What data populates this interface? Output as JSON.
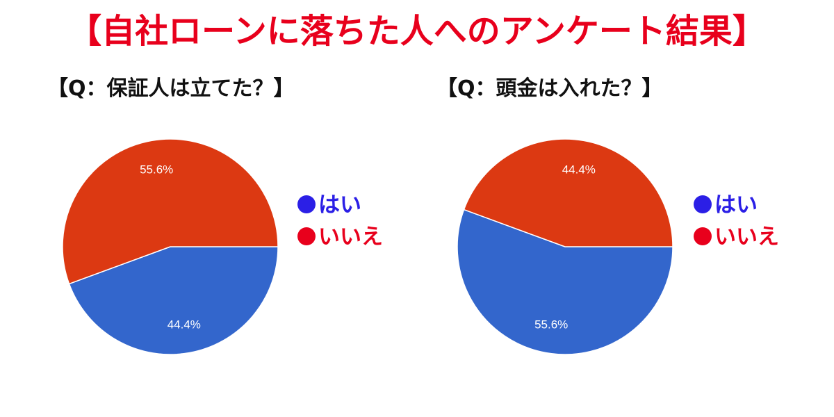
{
  "title": "【自社ローンに落ちた人へのアンケート結果】",
  "colors": {
    "title": "#e8001c",
    "yes": "#3366cc",
    "no": "#dc3912",
    "legend_yes": "#2b1fe6",
    "legend_no": "#e8001c"
  },
  "chart_data": [
    {
      "type": "pie",
      "title": "【Q：保証人は立てた？】",
      "legend": [
        {
          "label": "●はい",
          "marker": "●",
          "text": "はい"
        },
        {
          "label": "●いいえ",
          "marker": "●",
          "text": "いいえ"
        }
      ],
      "legend_placement": "right",
      "slices": [
        {
          "name": "はい",
          "value": 44.4,
          "label": "44.4%"
        },
        {
          "name": "いいえ",
          "value": 55.6,
          "label": "55.6%"
        }
      ]
    },
    {
      "type": "pie",
      "title": "【Q：頭金は入れた？】",
      "legend": [
        {
          "label": "●はい",
          "marker": "●",
          "text": "はい"
        },
        {
          "label": "●いいえ",
          "marker": "●",
          "text": "いいえ"
        }
      ],
      "legend_placement": "right",
      "slices": [
        {
          "name": "はい",
          "value": 55.6,
          "label": "55.6%"
        },
        {
          "name": "いいえ",
          "value": 44.4,
          "label": "44.4%"
        }
      ]
    }
  ]
}
